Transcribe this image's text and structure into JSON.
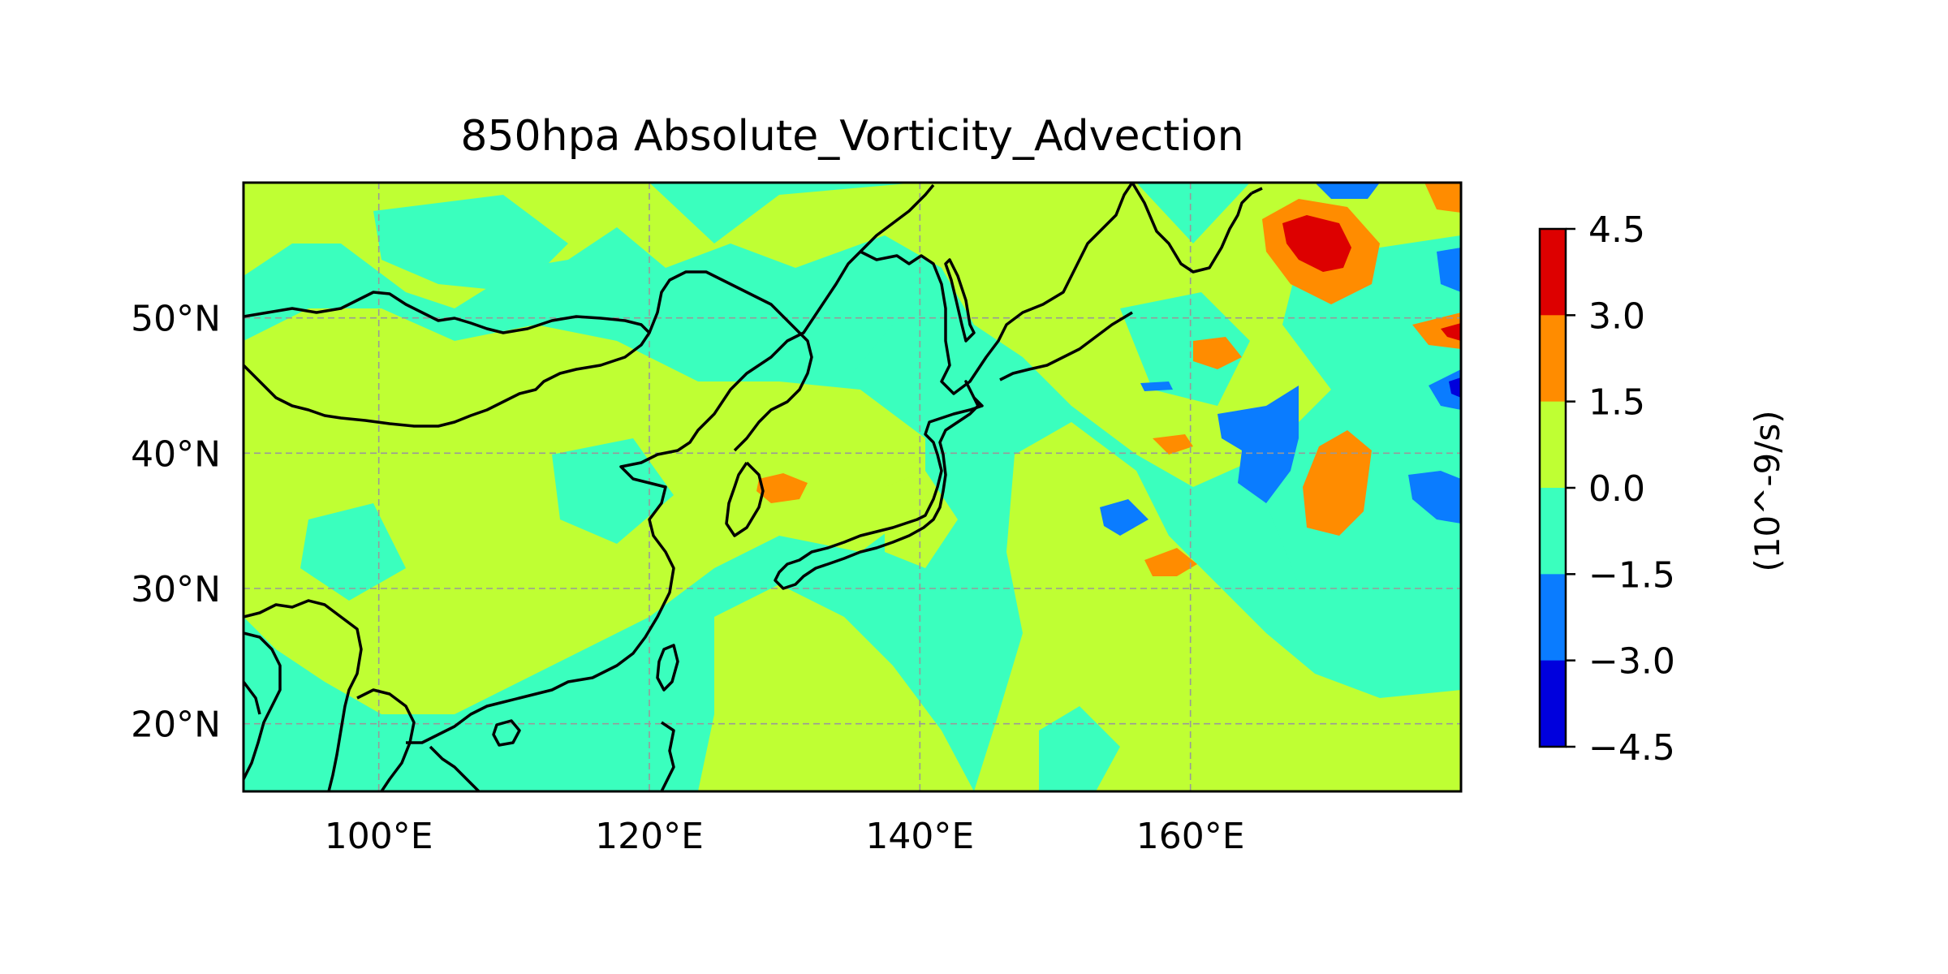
{
  "title": "850hpa Absolute_Vorticity_Advection",
  "map": {
    "lon_range": [
      90,
      180
    ],
    "lat_range": [
      15,
      60
    ],
    "gridlines": true,
    "x_ticks": [
      {
        "value": 100,
        "label": "100°E"
      },
      {
        "value": 120,
        "label": "120°E"
      },
      {
        "value": 140,
        "label": "140°E"
      },
      {
        "value": 160,
        "label": "160°E"
      }
    ],
    "y_ticks": [
      {
        "value": 20,
        "label": "20°N"
      },
      {
        "value": 30,
        "label": "30°N"
      },
      {
        "value": 40,
        "label": "40°N"
      },
      {
        "value": 50,
        "label": "50°N"
      }
    ]
  },
  "colorbar": {
    "label": "(10^-9/s)",
    "ticks": [
      "4.5",
      "3.0",
      "1.5",
      "0.0",
      "−1.5",
      "−3.0",
      "−4.5"
    ],
    "bins": [
      {
        "from": 3.0,
        "to": 4.5,
        "color": "#dd0000"
      },
      {
        "from": 1.5,
        "to": 3.0,
        "color": "#ff8c00"
      },
      {
        "from": 0.0,
        "to": 1.5,
        "color": "#bfff33"
      },
      {
        "from": -1.5,
        "to": 0.0,
        "color": "#3affbe"
      },
      {
        "from": -3.0,
        "to": -1.5,
        "color": "#0a7cff"
      },
      {
        "from": -4.5,
        "to": -3.0,
        "color": "#0000dd"
      }
    ]
  },
  "chart_data": {
    "type": "heatmap",
    "title": "850hpa Absolute_Vorticity_Advection",
    "units": "(10^-9/s)",
    "levels": [
      -4.5,
      -3.0,
      -1.5,
      0.0,
      1.5,
      3.0,
      4.5
    ],
    "background_level": [
      -1.5,
      0.0
    ],
    "features": [
      {
        "lon": 167,
        "lat": 56,
        "level": [
          3.0,
          4.5
        ]
      },
      {
        "lon": 169,
        "lat": 55,
        "level": [
          1.5,
          3.0
        ]
      },
      {
        "lon": 177,
        "lat": 49,
        "level": [
          3.0,
          4.5
        ]
      },
      {
        "lon": 165,
        "lat": 46,
        "level": [
          1.5,
          3.0
        ]
      },
      {
        "lon": 169,
        "lat": 37,
        "level": [
          1.5,
          3.0
        ]
      },
      {
        "lon": 158,
        "lat": 31,
        "level": [
          1.5,
          3.0
        ]
      },
      {
        "lon": 130,
        "lat": 37,
        "level": [
          1.5,
          3.0
        ]
      },
      {
        "lon": 156,
        "lat": 41,
        "level": [
          1.5,
          3.0
        ]
      },
      {
        "lon": 165,
        "lat": 40,
        "level": [
          -3.0,
          -1.5
        ]
      },
      {
        "lon": 177,
        "lat": 45,
        "level": [
          -4.5,
          -3.0
        ]
      },
      {
        "lon": 176,
        "lat": 52,
        "level": [
          -3.0,
          -1.5
        ]
      },
      {
        "lon": 175,
        "lat": 37,
        "level": [
          -3.0,
          -1.5
        ]
      },
      {
        "lon": 155,
        "lat": 35,
        "level": [
          -3.0,
          -1.5
        ]
      },
      {
        "lon": 170,
        "lat": 59.5,
        "level": [
          -3.0,
          -1.5
        ]
      }
    ]
  }
}
